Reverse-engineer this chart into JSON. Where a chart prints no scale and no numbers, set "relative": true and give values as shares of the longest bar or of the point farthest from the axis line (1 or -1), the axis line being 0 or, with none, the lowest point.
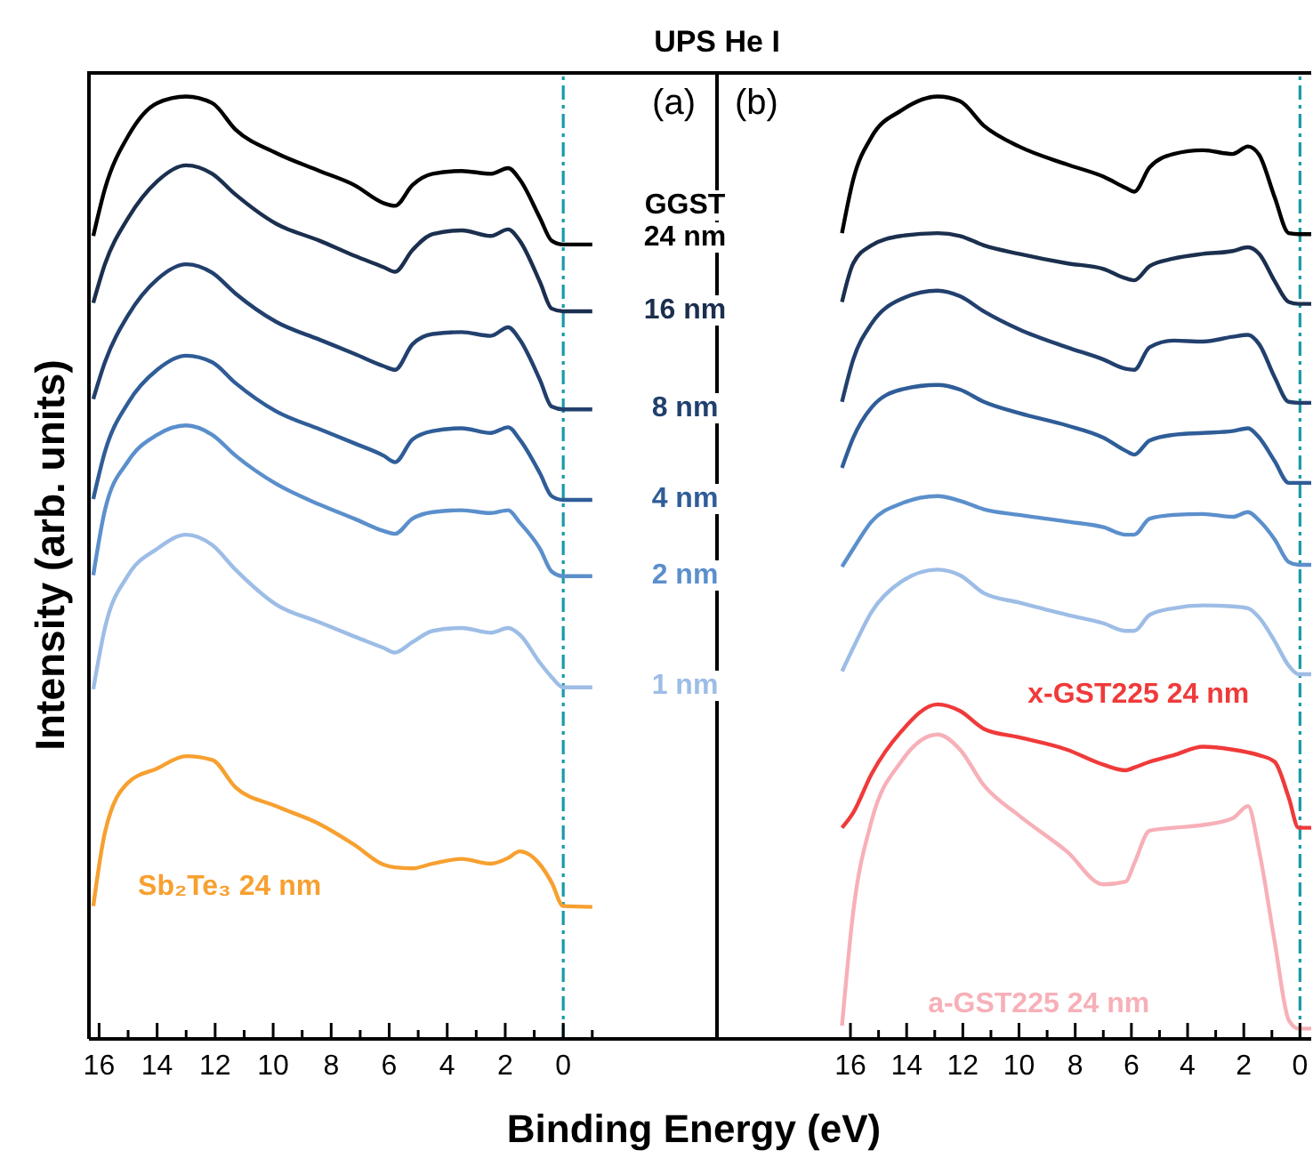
{
  "chart_data": [
    {
      "type": "line",
      "title": "UPS He I",
      "xlabel": "Binding Energy (eV)",
      "ylabel": "Intensity (arb. units)",
      "relative": true,
      "annotations": [
        "(a)"
      ],
      "xlim": [
        16.35,
        -5.3
      ],
      "xticks": [
        16,
        {
          "value": 15,
          "label": null
        },
        14,
        {
          "value": 13,
          "label": null
        },
        12,
        {
          "value": 11,
          "label": null
        },
        10,
        {
          "value": 9,
          "label": null
        },
        8,
        {
          "value": 7,
          "label": null
        },
        6,
        {
          "value": 5,
          "label": null
        },
        4,
        {
          "value": 3,
          "label": null
        },
        2,
        {
          "value": 1,
          "label": null
        },
        0,
        {
          "value": -1,
          "label": null
        }
      ],
      "ref_lines": [
        {
          "axis": "x",
          "value": 0,
          "color": "#1a9aa8",
          "line_style": "dashdot"
        }
      ],
      "x": [
        16.2,
        15.8,
        15.0,
        14.0,
        13.0,
        12.1,
        11.3,
        9.9,
        8.4,
        7.2,
        6.2,
        5.8,
        5.2,
        4.5,
        3.5,
        2.5,
        1.9,
        1.5,
        0.8,
        0.4,
        0,
        -1
      ],
      "series": [
        {
          "name": "GGST 24 nm",
          "color": "#000000",
          "values": [
            0.852,
            0.902,
            0.958,
            0.993,
            1,
            0.993,
            0.965,
            0.94,
            0.921,
            0.906,
            0.887,
            0.884,
            0.906,
            0.918,
            0.921,
            0.918,
            0.924,
            0.912,
            0.871,
            0.847,
            0.843,
            0.843
          ]
        },
        {
          "name": "16 nm",
          "color": "#1b2f4e",
          "values": [
            0.781,
            0.822,
            0.871,
            0.91,
            0.927,
            0.918,
            0.896,
            0.865,
            0.847,
            0.831,
            0.819,
            0.814,
            0.837,
            0.854,
            0.858,
            0.852,
            0.859,
            0.847,
            0.803,
            0.775,
            0.772,
            0.772
          ]
        },
        {
          "name": "8 nm",
          "color": "#22406e",
          "values": [
            0.679,
            0.718,
            0.768,
            0.806,
            0.822,
            0.813,
            0.791,
            0.761,
            0.742,
            0.727,
            0.714,
            0.71,
            0.737,
            0.748,
            0.75,
            0.746,
            0.755,
            0.742,
            0.699,
            0.671,
            0.668,
            0.668
          ]
        },
        {
          "name": "4 nm",
          "color": "#2f5d98",
          "values": [
            0.573,
            0.623,
            0.675,
            0.71,
            0.725,
            0.718,
            0.696,
            0.666,
            0.647,
            0.632,
            0.619,
            0.612,
            0.636,
            0.645,
            0.648,
            0.643,
            0.649,
            0.636,
            0.6,
            0.576,
            0.572,
            0.572
          ]
        },
        {
          "name": "2 nm",
          "color": "#5b8fcc",
          "values": [
            0.492,
            0.561,
            0.613,
            0.641,
            0.651,
            0.641,
            0.619,
            0.589,
            0.567,
            0.552,
            0.539,
            0.536,
            0.552,
            0.559,
            0.561,
            0.558,
            0.561,
            0.548,
            0.52,
            0.496,
            0.491,
            0.491
          ]
        },
        {
          "name": "1 nm",
          "color": "#9dbde6",
          "values": [
            0.371,
            0.436,
            0.492,
            0.52,
            0.535,
            0.524,
            0.498,
            0.461,
            0.442,
            0.427,
            0.415,
            0.41,
            0.421,
            0.433,
            0.436,
            0.431,
            0.436,
            0.429,
            0.399,
            0.384,
            0.373,
            0.373
          ]
        },
        {
          "name": "Sb₂Te₃ 24 nm",
          "color": "#f7a030",
          "values": [
            0.141,
            0.219,
            0.272,
            0.287,
            0.3,
            0.296,
            0.267,
            0.247,
            0.228,
            0.206,
            0.185,
            0.182,
            0.181,
            0.186,
            0.191,
            0.186,
            0.192,
            0.199,
            0.185,
            0.166,
            0.141,
            0.14
          ]
        }
      ]
    },
    {
      "type": "line",
      "relative": true,
      "annotations": [
        "(b)"
      ],
      "xlim": [
        20.75,
        -0.4
      ],
      "xticks": [
        16,
        {
          "value": 15,
          "label": null
        },
        14,
        {
          "value": 13,
          "label": null
        },
        12,
        {
          "value": 11,
          "label": null
        },
        10,
        {
          "value": 9,
          "label": null
        },
        8,
        {
          "value": 7,
          "label": null
        },
        6,
        {
          "value": 5,
          "label": null
        },
        4,
        {
          "value": 3,
          "label": null
        },
        2,
        {
          "value": 1,
          "label": null
        },
        0
      ],
      "ref_lines": [
        {
          "axis": "x",
          "value": 0,
          "color": "#1a9aa8",
          "line_style": "dashdot"
        }
      ],
      "x": [
        16.3,
        15.9,
        15.25,
        14.2,
        12.9,
        12.1,
        11.25,
        10.0,
        8.3,
        7.0,
        6.2,
        5.9,
        5.35,
        4.5,
        3.45,
        2.4,
        1.85,
        1.45,
        0.9,
        0.4,
        0.05,
        -0.4
      ],
      "series": [
        {
          "color": "#000000",
          "values": [
            0.855,
            0.912,
            0.957,
            0.985,
            1,
            0.995,
            0.969,
            0.947,
            0.928,
            0.915,
            0.903,
            0.899,
            0.925,
            0.939,
            0.943,
            0.939,
            0.947,
            0.938,
            0.893,
            0.855,
            0.854,
            0.854
          ]
        },
        {
          "color": "#1b2f4e",
          "values": [
            0.782,
            0.823,
            0.842,
            0.852,
            0.855,
            0.852,
            0.842,
            0.833,
            0.823,
            0.817,
            0.807,
            0.805,
            0.82,
            0.828,
            0.833,
            0.836,
            0.84,
            0.833,
            0.804,
            0.782,
            0.78,
            0.78
          ]
        },
        {
          "color": "#22406e",
          "values": [
            0.676,
            0.721,
            0.759,
            0.785,
            0.794,
            0.788,
            0.772,
            0.753,
            0.734,
            0.721,
            0.711,
            0.71,
            0.734,
            0.741,
            0.74,
            0.745,
            0.747,
            0.737,
            0.702,
            0.676,
            0.675,
            0.675
          ]
        },
        {
          "color": "#2f5d98",
          "values": [
            0.606,
            0.638,
            0.67,
            0.689,
            0.694,
            0.689,
            0.676,
            0.664,
            0.651,
            0.638,
            0.624,
            0.62,
            0.635,
            0.641,
            0.643,
            0.645,
            0.648,
            0.638,
            0.613,
            0.59,
            0.59,
            0.59
          ]
        },
        {
          "color": "#5b8fcc",
          "values": [
            0.501,
            0.52,
            0.549,
            0.568,
            0.576,
            0.571,
            0.562,
            0.556,
            0.549,
            0.543,
            0.535,
            0.535,
            0.552,
            0.556,
            0.557,
            0.554,
            0.559,
            0.55,
            0.53,
            0.506,
            0.503,
            0.503
          ]
        },
        {
          "color": "#9dbde6",
          "values": [
            0.39,
            0.415,
            0.453,
            0.485,
            0.498,
            0.492,
            0.473,
            0.463,
            0.45,
            0.441,
            0.433,
            0.433,
            0.45,
            0.457,
            0.46,
            0.459,
            0.457,
            0.447,
            0.422,
            0.396,
            0.387,
            0.387
          ]
        },
        {
          "name": "x-GST225 24 nm",
          "color": "#f03a3a",
          "values": [
            0.224,
            0.24,
            0.281,
            0.326,
            0.355,
            0.348,
            0.329,
            0.32,
            0.307,
            0.291,
            0.285,
            0.288,
            0.294,
            0.301,
            0.31,
            0.307,
            0.304,
            0.301,
            0.294,
            0.256,
            0.224,
            0.224
          ]
        },
        {
          "name": "a-GST225 24 nm",
          "color": "#f7b0b8",
          "values": [
            0.014,
            0.135,
            0.231,
            0.294,
            0.323,
            0.307,
            0.269,
            0.237,
            0.199,
            0.164,
            0.167,
            0.186,
            0.221,
            0.224,
            0.227,
            0.234,
            0.247,
            0.199,
            0.103,
            0.02,
            0.011,
            0.011
          ]
        }
      ]
    }
  ]
}
